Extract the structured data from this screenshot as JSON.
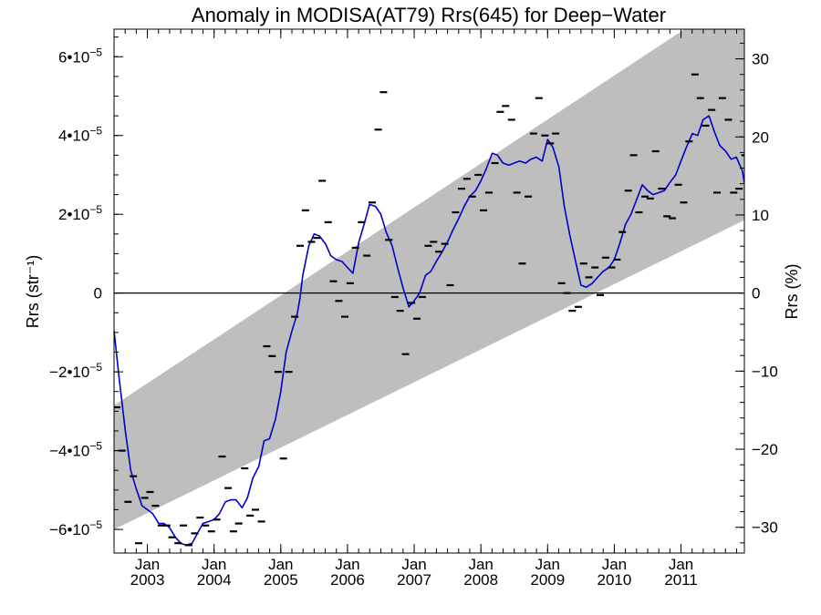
{
  "chart_data": {
    "type": "scatter",
    "title": "Anomaly in MODISA(AT79) Rrs(645) for Deep−Water",
    "ylabel_left": "Rrs (str⁻¹)",
    "ylabel_right": "Rrs (%)",
    "xlabel": "",
    "xlim": [
      2002.5,
      2011.95
    ],
    "ylim": [
      -6.6e-05,
      6.7e-05
    ],
    "ylim_right": [
      -33.3,
      33.8
    ],
    "x_ticks": [
      {
        "x": 2003.0,
        "top": "Jan",
        "bottom": "2003"
      },
      {
        "x": 2004.0,
        "top": "Jan",
        "bottom": "2004"
      },
      {
        "x": 2005.0,
        "top": "Jan",
        "bottom": "2005"
      },
      {
        "x": 2006.0,
        "top": "Jan",
        "bottom": "2006"
      },
      {
        "x": 2007.0,
        "top": "Jan",
        "bottom": "2007"
      },
      {
        "x": 2008.0,
        "top": "Jan",
        "bottom": "2008"
      },
      {
        "x": 2009.0,
        "top": "Jan",
        "bottom": "2009"
      },
      {
        "x": 2010.0,
        "top": "Jan",
        "bottom": "2010"
      },
      {
        "x": 2011.0,
        "top": "Jan",
        "bottom": "2011"
      }
    ],
    "y_ticks_left": [
      {
        "value": 6e-05,
        "mantissa": "6•10",
        "exp": "−5"
      },
      {
        "value": 4e-05,
        "mantissa": "4•10",
        "exp": "−5"
      },
      {
        "value": 2e-05,
        "mantissa": "2•10",
        "exp": "−5"
      },
      {
        "value": 0,
        "mantissa": "0",
        "exp": ""
      },
      {
        "value": -2e-05,
        "mantissa": "−2•10",
        "exp": "−5"
      },
      {
        "value": -4e-05,
        "mantissa": "−4•10",
        "exp": "−5"
      },
      {
        "value": -6e-05,
        "mantissa": "−6•10",
        "exp": "−5"
      }
    ],
    "y_ticks_right": [
      {
        "value": 30,
        "label": "30"
      },
      {
        "value": 20,
        "label": "20"
      },
      {
        "value": 10,
        "label": "10"
      },
      {
        "value": 0,
        "label": "0"
      },
      {
        "value": -10,
        "label": "−10"
      },
      {
        "value": -20,
        "label": "−20"
      },
      {
        "value": -30,
        "label": "−30"
      }
    ],
    "band": {
      "upper": [
        [
          2002.5,
          -2.85e-05
        ],
        [
          2011.95,
          7.7e-05
        ]
      ],
      "lower": [
        [
          2002.5,
          -6e-05
        ],
        [
          2011.95,
          1.85e-05
        ]
      ],
      "color": "#bebebe"
    },
    "zero_line": 0,
    "series": [
      {
        "style": "dash-markers",
        "color": "#000000",
        "points": [
          [
            2002.54,
            -2.9e-05
          ],
          [
            2002.62,
            -4e-05
          ],
          [
            2002.71,
            -5.3e-05
          ],
          [
            2002.79,
            -4.65e-05
          ],
          [
            2002.87,
            -6.35e-05
          ],
          [
            2002.96,
            -5.2e-05
          ],
          [
            2003.04,
            -5.05e-05
          ],
          [
            2003.12,
            -5.4e-05
          ],
          [
            2003.21,
            -5.9e-05
          ],
          [
            2003.29,
            -5.9e-05
          ],
          [
            2003.37,
            -6.2e-05
          ],
          [
            2003.46,
            -6.35e-05
          ],
          [
            2003.54,
            -5.9e-05
          ],
          [
            2003.62,
            -6.4e-05
          ],
          [
            2003.71,
            -6.1e-05
          ],
          [
            2003.79,
            -5.7e-05
          ],
          [
            2003.87,
            -5.9e-05
          ],
          [
            2003.96,
            -6.05e-05
          ],
          [
            2004.04,
            -5.75e-05
          ],
          [
            2004.12,
            -4.15e-05
          ],
          [
            2004.21,
            -4.95e-05
          ],
          [
            2004.29,
            -6.05e-05
          ],
          [
            2004.37,
            -5.85e-05
          ],
          [
            2004.46,
            -4.45e-05
          ],
          [
            2004.54,
            -5.65e-05
          ],
          [
            2004.62,
            -5.5e-05
          ],
          [
            2004.71,
            -5.8e-05
          ],
          [
            2004.79,
            -1.35e-05
          ],
          [
            2004.87,
            -1.6e-05
          ],
          [
            2004.96,
            -2e-05
          ],
          [
            2005.04,
            -4.2e-05
          ],
          [
            2005.12,
            -2e-05
          ],
          [
            2005.21,
            -6e-06
          ],
          [
            2005.29,
            1.2e-05
          ],
          [
            2005.37,
            2.1e-05
          ],
          [
            2005.46,
            1.3e-05
          ],
          [
            2005.54,
            1.4e-05
          ],
          [
            2005.62,
            2.85e-05
          ],
          [
            2005.71,
            1.8e-05
          ],
          [
            2005.79,
            3e-06
          ],
          [
            2005.87,
            -2e-06
          ],
          [
            2005.96,
            -6e-06
          ],
          [
            2006.04,
            2.5e-06
          ],
          [
            2006.12,
            1.15e-05
          ],
          [
            2006.21,
            1.8e-05
          ],
          [
            2006.29,
            9.5e-06
          ],
          [
            2006.37,
            2.3e-05
          ],
          [
            2006.46,
            4.15e-05
          ],
          [
            2006.54,
            5.1e-05
          ],
          [
            2006.62,
            1.35e-05
          ],
          [
            2006.71,
            -1e-06
          ],
          [
            2006.79,
            -4.5e-06
          ],
          [
            2006.87,
            -1.55e-05
          ],
          [
            2006.96,
            -2.5e-06
          ],
          [
            2007.04,
            -6.5e-06
          ],
          [
            2007.12,
            -1e-06
          ],
          [
            2007.21,
            1.2e-05
          ],
          [
            2007.29,
            1.3e-05
          ],
          [
            2007.37,
            1.05e-05
          ],
          [
            2007.46,
            1.25e-05
          ],
          [
            2007.54,
            2e-06
          ],
          [
            2007.62,
            2.05e-05
          ],
          [
            2007.71,
            2.65e-05
          ],
          [
            2007.79,
            2.9e-05
          ],
          [
            2007.87,
            2.45e-05
          ],
          [
            2007.96,
            3e-05
          ],
          [
            2008.04,
            2.1e-05
          ],
          [
            2008.12,
            2.55e-05
          ],
          [
            2008.21,
            3.3e-05
          ],
          [
            2008.29,
            4.6e-05
          ],
          [
            2008.37,
            4.75e-05
          ],
          [
            2008.46,
            4.4e-05
          ],
          [
            2008.54,
            2.55e-05
          ],
          [
            2008.62,
            7.5e-06
          ],
          [
            2008.71,
            2.45e-05
          ],
          [
            2008.79,
            4.05e-05
          ],
          [
            2008.87,
            4.95e-05
          ],
          [
            2008.96,
            4e-05
          ],
          [
            2009.04,
            3.8e-05
          ],
          [
            2009.12,
            4.05e-05
          ],
          [
            2009.21,
            2.5e-06
          ],
          [
            2009.29,
            0.0
          ],
          [
            2009.37,
            -4.5e-06
          ],
          [
            2009.46,
            -3.5e-06
          ],
          [
            2009.54,
            7.5e-06
          ],
          [
            2009.62,
            4e-06
          ],
          [
            2009.71,
            6.5e-06
          ],
          [
            2009.79,
            -5e-07
          ],
          [
            2009.87,
            9e-06
          ],
          [
            2009.96,
            6.5e-06
          ],
          [
            2010.04,
            8.5e-06
          ],
          [
            2010.12,
            1.55e-05
          ],
          [
            2010.21,
            2.6e-05
          ],
          [
            2010.29,
            3.5e-05
          ],
          [
            2010.37,
            2.05e-05
          ],
          [
            2010.46,
            2.45e-05
          ],
          [
            2010.54,
            2.4e-05
          ],
          [
            2010.62,
            3.6e-05
          ],
          [
            2010.71,
            2.65e-05
          ],
          [
            2010.79,
            1.95e-05
          ],
          [
            2010.87,
            1.9e-05
          ],
          [
            2010.96,
            2.75e-05
          ],
          [
            2011.04,
            2.3e-05
          ],
          [
            2011.12,
            3.85e-05
          ],
          [
            2011.21,
            5.55e-05
          ],
          [
            2011.29,
            4.95e-05
          ],
          [
            2011.37,
            4.25e-05
          ],
          [
            2011.46,
            4.65e-05
          ],
          [
            2011.54,
            2.55e-05
          ],
          [
            2011.62,
            4.95e-05
          ],
          [
            2011.71,
            4.4e-05
          ],
          [
            2011.79,
            2.55e-05
          ],
          [
            2011.87,
            2.65e-05
          ],
          [
            2011.96,
            3.5e-05
          ]
        ]
      },
      {
        "style": "line",
        "color": "#0000cc",
        "points": [
          [
            2002.5,
            -9.5e-06
          ],
          [
            2002.58,
            -2.2e-05
          ],
          [
            2002.67,
            -3.5e-05
          ],
          [
            2002.75,
            -4.5e-05
          ],
          [
            2002.83,
            -4.95e-05
          ],
          [
            2002.92,
            -5.4e-05
          ],
          [
            2003.0,
            -5.5e-05
          ],
          [
            2003.08,
            -5.6e-05
          ],
          [
            2003.17,
            -5.85e-05
          ],
          [
            2003.25,
            -5.85e-05
          ],
          [
            2003.33,
            -5.95e-05
          ],
          [
            2003.42,
            -6.2e-05
          ],
          [
            2003.5,
            -6.35e-05
          ],
          [
            2003.58,
            -6.4e-05
          ],
          [
            2003.67,
            -6.35e-05
          ],
          [
            2003.75,
            -6.1e-05
          ],
          [
            2003.83,
            -5.85e-05
          ],
          [
            2003.92,
            -5.8e-05
          ],
          [
            2004.0,
            -5.75e-05
          ],
          [
            2004.08,
            -5.6e-05
          ],
          [
            2004.17,
            -5.3e-05
          ],
          [
            2004.25,
            -5.25e-05
          ],
          [
            2004.33,
            -5.25e-05
          ],
          [
            2004.42,
            -5.45e-05
          ],
          [
            2004.5,
            -5.2e-05
          ],
          [
            2004.58,
            -4.7e-05
          ],
          [
            2004.67,
            -4.4e-05
          ],
          [
            2004.75,
            -3.75e-05
          ],
          [
            2004.83,
            -3.7e-05
          ],
          [
            2004.92,
            -3.2e-05
          ],
          [
            2005.0,
            -2.5e-05
          ],
          [
            2005.08,
            -1.5e-05
          ],
          [
            2005.17,
            -9.5e-06
          ],
          [
            2005.25,
            -5e-06
          ],
          [
            2005.29,
            -1e-06
          ],
          [
            2005.33,
            4.5e-06
          ],
          [
            2005.42,
            1.2e-05
          ],
          [
            2005.5,
            1.5e-05
          ],
          [
            2005.58,
            1.45e-05
          ],
          [
            2005.67,
            1.25e-05
          ],
          [
            2005.75,
            9.5e-06
          ],
          [
            2005.83,
            8.5e-06
          ],
          [
            2005.92,
            8e-06
          ],
          [
            2006.0,
            6.5e-06
          ],
          [
            2006.08,
            5e-06
          ],
          [
            2006.17,
            1.3e-05
          ],
          [
            2006.25,
            1.75e-05
          ],
          [
            2006.33,
            2.25e-05
          ],
          [
            2006.42,
            2.2e-05
          ],
          [
            2006.5,
            2e-05
          ],
          [
            2006.58,
            1.55e-05
          ],
          [
            2006.67,
            1.2e-05
          ],
          [
            2006.75,
            6.5e-06
          ],
          [
            2006.83,
            1.5e-06
          ],
          [
            2006.92,
            -3.5e-06
          ],
          [
            2007.0,
            -2e-06
          ],
          [
            2007.08,
            0.0
          ],
          [
            2007.17,
            4.5e-06
          ],
          [
            2007.25,
            5.5e-06
          ],
          [
            2007.33,
            8e-06
          ],
          [
            2007.42,
            1.05e-05
          ],
          [
            2007.5,
            1.3e-05
          ],
          [
            2007.58,
            1.6e-05
          ],
          [
            2007.67,
            1.9e-05
          ],
          [
            2007.75,
            2.2e-05
          ],
          [
            2007.83,
            2.45e-05
          ],
          [
            2007.92,
            2.6e-05
          ],
          [
            2008.0,
            2.85e-05
          ],
          [
            2008.08,
            3.15e-05
          ],
          [
            2008.17,
            3.55e-05
          ],
          [
            2008.25,
            3.5e-05
          ],
          [
            2008.33,
            3.3e-05
          ],
          [
            2008.42,
            3.25e-05
          ],
          [
            2008.5,
            3.3e-05
          ],
          [
            2008.58,
            3.35e-05
          ],
          [
            2008.67,
            3.3e-05
          ],
          [
            2008.75,
            3.4e-05
          ],
          [
            2008.83,
            3.45e-05
          ],
          [
            2008.92,
            3.35e-05
          ],
          [
            2009.0,
            3.9e-05
          ],
          [
            2009.08,
            3.7e-05
          ],
          [
            2009.17,
            3.2e-05
          ],
          [
            2009.25,
            2.2e-05
          ],
          [
            2009.33,
            1.5e-05
          ],
          [
            2009.42,
            8e-06
          ],
          [
            2009.5,
            2e-06
          ],
          [
            2009.58,
            1.5e-06
          ],
          [
            2009.67,
            2.5e-06
          ],
          [
            2009.75,
            4e-06
          ],
          [
            2009.83,
            5.5e-06
          ],
          [
            2009.92,
            6.5e-06
          ],
          [
            2010.0,
            8.5e-06
          ],
          [
            2010.08,
            1.25e-05
          ],
          [
            2010.17,
            1.75e-05
          ],
          [
            2010.25,
            2e-05
          ],
          [
            2010.33,
            2.35e-05
          ],
          [
            2010.42,
            2.75e-05
          ],
          [
            2010.5,
            2.6e-05
          ],
          [
            2010.58,
            2.5e-05
          ],
          [
            2010.67,
            2.55e-05
          ],
          [
            2010.75,
            2.6e-05
          ],
          [
            2010.83,
            2.8e-05
          ],
          [
            2010.92,
            3e-05
          ],
          [
            2011.0,
            3.35e-05
          ],
          [
            2011.08,
            3.7e-05
          ],
          [
            2011.17,
            4.05e-05
          ],
          [
            2011.25,
            4e-05
          ],
          [
            2011.33,
            4.4e-05
          ],
          [
            2011.42,
            4.5e-05
          ],
          [
            2011.5,
            4.1e-05
          ],
          [
            2011.58,
            3.75e-05
          ],
          [
            2011.67,
            3.6e-05
          ],
          [
            2011.75,
            3.4e-05
          ],
          [
            2011.83,
            3.45e-05
          ],
          [
            2011.92,
            3.1e-05
          ],
          [
            2011.95,
            2.8e-05
          ]
        ]
      }
    ]
  }
}
